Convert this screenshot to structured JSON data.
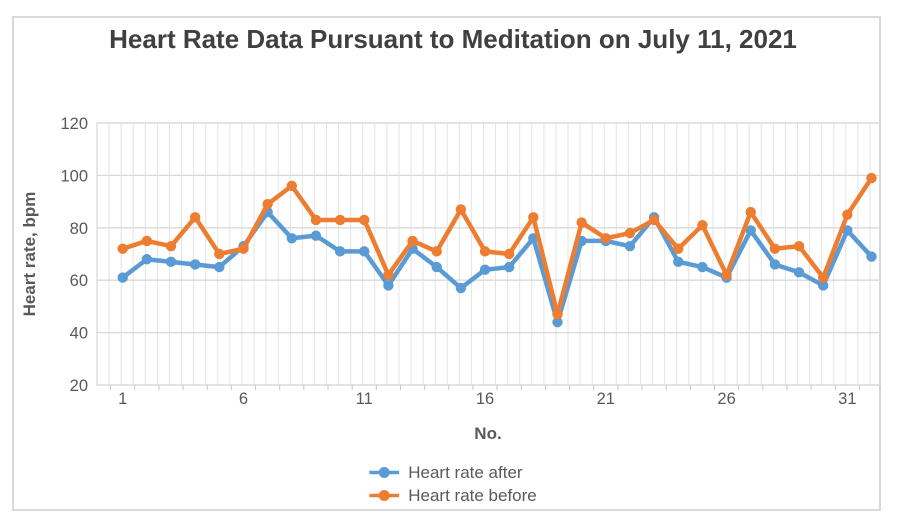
{
  "chart_data": {
    "type": "line",
    "title": "Heart Rate Data Pursuant to Meditation on July 11, 2021",
    "xlabel": "No.",
    "ylabel": "Heart rate, bpm",
    "x": [
      1,
      2,
      3,
      4,
      5,
      6,
      7,
      8,
      9,
      10,
      11,
      12,
      13,
      14,
      15,
      16,
      17,
      18,
      19,
      20,
      21,
      22,
      23,
      24,
      25,
      26,
      27,
      28,
      29,
      30,
      31,
      32
    ],
    "series": [
      {
        "name": "Heart rate after",
        "color": "#5B9BD5",
        "values": [
          61,
          68,
          67,
          66,
          65,
          73,
          86,
          76,
          77,
          71,
          71,
          58,
          72,
          65,
          57,
          64,
          65,
          76,
          44,
          75,
          75,
          73,
          84,
          67,
          65,
          61,
          79,
          66,
          63,
          58,
          79,
          69
        ]
      },
      {
        "name": "Heart rate before",
        "color": "#ED7D31",
        "values": [
          72,
          75,
          73,
          84,
          70,
          72,
          89,
          96,
          83,
          83,
          83,
          62,
          75,
          71,
          87,
          71,
          70,
          84,
          47,
          82,
          76,
          78,
          83,
          72,
          81,
          62,
          86,
          72,
          73,
          61,
          85,
          99
        ]
      }
    ],
    "ylim": [
      20,
      120
    ],
    "yticks": [
      20,
      40,
      60,
      80,
      100,
      120
    ],
    "xticks": [
      1,
      6,
      11,
      16,
      21,
      26,
      31
    ],
    "grid": true,
    "legend_position": "bottom",
    "styles": {
      "gridline_color": "#d9d9d9",
      "minor_gridline_color": "#e3e3e3",
      "tick_color": "#c6c6c6",
      "tick_label_color": "#595959",
      "title_color": "#404040",
      "frame_border_color": "#d9d9d9"
    }
  }
}
